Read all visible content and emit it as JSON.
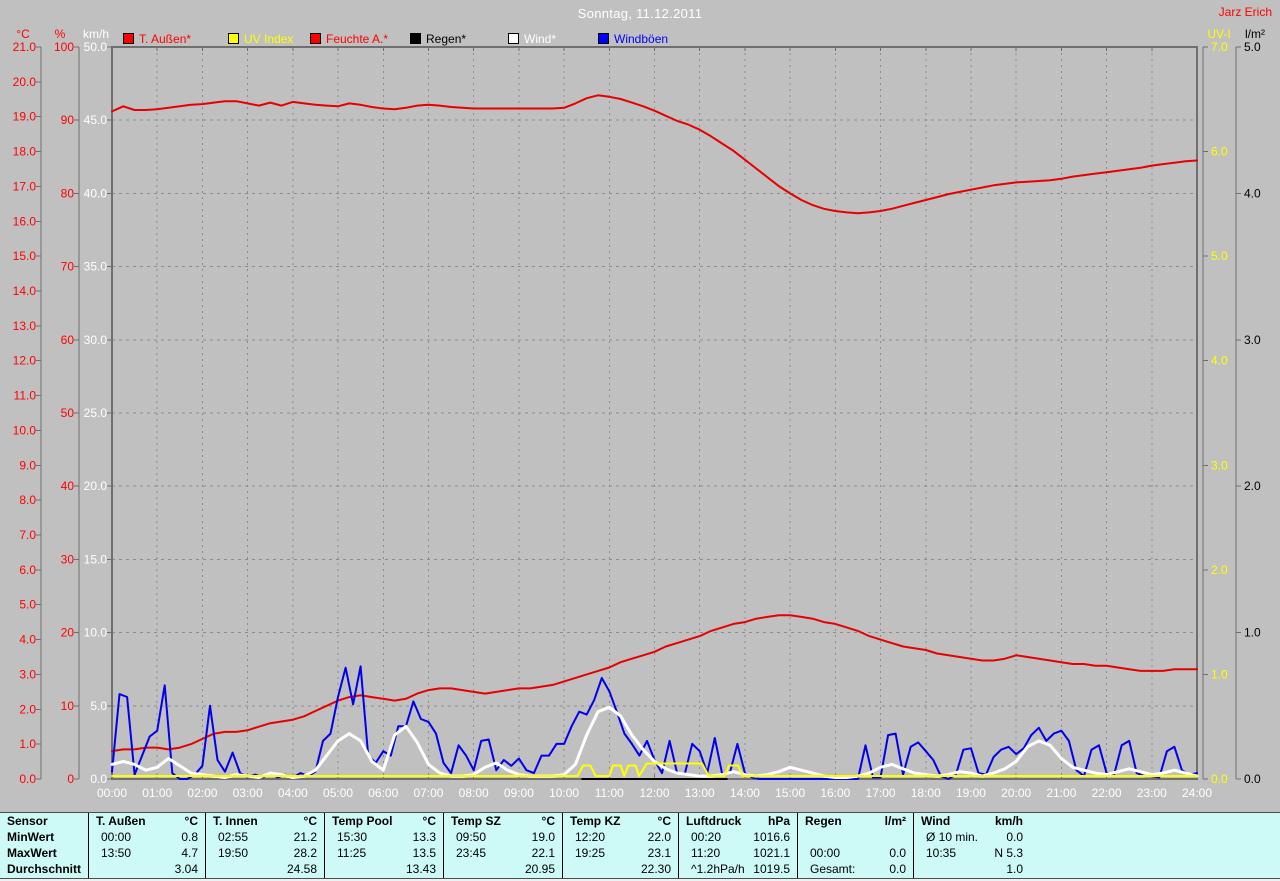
{
  "header": {
    "title": "Sonntag, 11.12.2011",
    "watermark": "Jarz Erich"
  },
  "colors": {
    "background": "#c0c0c0",
    "grid": "#8c8c8c",
    "frame": "#6f6f6f",
    "red": "#e60000",
    "axis_red": "#ff0000",
    "white": "#ffffff",
    "blue": "#0000ee",
    "yellow": "#ffff00",
    "black": "#000000",
    "table_bg": "#cdf9f6"
  },
  "legend": [
    {
      "label": "T. Außen*",
      "color": "#ff0000"
    },
    {
      "label": "UV Index",
      "color": "#ffff00"
    },
    {
      "label": "Feuchte A.*",
      "color": "#ff0000"
    },
    {
      "label": "Regen*",
      "color": "#000000"
    },
    {
      "label": "Wind*",
      "color": "#ffffff"
    },
    {
      "label": "Windböen",
      "color": "#0000ff"
    }
  ],
  "axes": {
    "left": [
      {
        "name": "°C",
        "color": "#ff0000",
        "min": 0,
        "max": 21,
        "step": 1,
        "decimals": 1
      },
      {
        "name": "%",
        "color": "#ff0000",
        "min": 0,
        "max": 100,
        "step": 10,
        "decimals": 0
      },
      {
        "name": "km/h",
        "color": "#ffffff",
        "min": 0,
        "max": 50,
        "step": 5,
        "decimals": 1
      }
    ],
    "right": [
      {
        "name": "UV-I",
        "color": "#ffff00",
        "min": 0,
        "max": 7,
        "step": 1,
        "decimals": 1
      },
      {
        "name": "l/m²",
        "color": "#000000",
        "min": 0,
        "max": 5,
        "step": 1,
        "decimals": 1
      }
    ],
    "x": {
      "labels": [
        "00:00",
        "01:00",
        "02:00",
        "03:00",
        "04:00",
        "05:00",
        "06:00",
        "07:00",
        "08:00",
        "09:00",
        "10:00",
        "11:00",
        "12:00",
        "13:00",
        "14:00",
        "15:00",
        "16:00",
        "17:00",
        "18:00",
        "19:00",
        "20:00",
        "21:00",
        "22:00",
        "23:00",
        "24:00"
      ]
    }
  },
  "chart_data": {
    "type": "line",
    "title": "Sonntag, 11.12.2011",
    "x_hours_range": [
      0,
      24
    ],
    "grid": "dashed",
    "series": [
      {
        "name": "Feuchte A.",
        "axis": "%",
        "color": "#e60000",
        "width": 2,
        "x_start": 0,
        "x_step": 0.25,
        "values": [
          91.2,
          91.9,
          91.4,
          91.4,
          91.5,
          91.7,
          91.9,
          92.1,
          92.2,
          92.4,
          92.6,
          92.6,
          92.3,
          92.0,
          92.4,
          92.0,
          92.5,
          92.3,
          92.1,
          92.0,
          91.9,
          92.3,
          92.1,
          91.8,
          91.6,
          91.5,
          91.7,
          92.0,
          92.1,
          92.0,
          91.8,
          91.7,
          91.6,
          91.6,
          91.6,
          91.6,
          91.6,
          91.6,
          91.6,
          91.6,
          91.7,
          92.3,
          93.0,
          93.4,
          93.2,
          92.9,
          92.4,
          91.9,
          91.3,
          90.6,
          89.9,
          89.4,
          88.7,
          87.8,
          86.8,
          85.8,
          84.6,
          83.4,
          82.2,
          81.0,
          80.0,
          79.1,
          78.4,
          77.9,
          77.6,
          77.4,
          77.3,
          77.4,
          77.6,
          77.9,
          78.3,
          78.7,
          79.1,
          79.5,
          79.9,
          80.2,
          80.5,
          80.8,
          81.1,
          81.3,
          81.5,
          81.6,
          81.7,
          81.8,
          82.0,
          82.3,
          82.5,
          82.7,
          82.9,
          83.1,
          83.3,
          83.5,
          83.8,
          84.0,
          84.2,
          84.4,
          84.5
        ]
      },
      {
        "name": "T. Außen",
        "axis": "°C",
        "color": "#e60000",
        "width": 2,
        "x_start": 0,
        "x_step": 0.25,
        "values": [
          0.8,
          0.85,
          0.85,
          0.9,
          0.9,
          0.85,
          0.9,
          1.0,
          1.15,
          1.3,
          1.35,
          1.35,
          1.4,
          1.5,
          1.6,
          1.65,
          1.7,
          1.8,
          1.95,
          2.1,
          2.25,
          2.35,
          2.4,
          2.35,
          2.3,
          2.25,
          2.3,
          2.45,
          2.55,
          2.6,
          2.6,
          2.55,
          2.5,
          2.45,
          2.5,
          2.55,
          2.6,
          2.6,
          2.65,
          2.7,
          2.8,
          2.9,
          3.0,
          3.1,
          3.2,
          3.35,
          3.45,
          3.55,
          3.65,
          3.8,
          3.9,
          4.0,
          4.1,
          4.25,
          4.35,
          4.45,
          4.5,
          4.6,
          4.65,
          4.7,
          4.7,
          4.65,
          4.6,
          4.5,
          4.45,
          4.35,
          4.25,
          4.1,
          4.0,
          3.9,
          3.8,
          3.75,
          3.7,
          3.6,
          3.55,
          3.5,
          3.45,
          3.4,
          3.4,
          3.45,
          3.55,
          3.5,
          3.45,
          3.4,
          3.35,
          3.3,
          3.3,
          3.25,
          3.25,
          3.2,
          3.15,
          3.1,
          3.1,
          3.1,
          3.15,
          3.15,
          3.15
        ]
      },
      {
        "name": "Windböen",
        "axis": "km/h",
        "color": "#0000ee",
        "width": 2,
        "x_start": 0,
        "x_step": 0.1666667,
        "values": [
          0.5,
          5.8,
          5.6,
          0.3,
          1.6,
          2.9,
          3.3,
          6.4,
          0.4,
          0,
          0,
          0.3,
          0.9,
          5,
          1.3,
          0.5,
          1.8,
          0.4,
          0.1,
          0.3,
          0.1,
          0.4,
          0.1,
          0.3,
          0.1,
          0.4,
          0.2,
          0.5,
          2.6,
          3.1,
          5.6,
          7.6,
          5.1,
          7.7,
          1.6,
          1.1,
          1.9,
          1.6,
          3.6,
          3.6,
          5.3,
          4.1,
          3.9,
          3.1,
          1.1,
          0.4,
          2.3,
          1.6,
          0.6,
          2.6,
          2.7,
          0.6,
          1.3,
          0.9,
          1.4,
          0.6,
          0.4,
          1.6,
          1.6,
          2.4,
          2.4,
          3.6,
          4.6,
          4.4,
          5.4,
          6.9,
          6,
          4.6,
          3.1,
          2.4,
          1.6,
          2.6,
          1.3,
          0.4,
          2.6,
          0.4,
          0.3,
          2.4,
          1.9,
          0.4,
          2.8,
          0.3,
          0.4,
          2.4,
          0.4,
          0.1,
          0,
          0,
          0,
          0,
          0,
          0,
          0,
          0,
          0,
          0,
          0,
          0,
          0,
          0,
          2.3,
          0.1,
          0.1,
          3,
          3.1,
          0.3,
          2.2,
          2.5,
          1.9,
          1.3,
          0.2,
          0,
          0.3,
          2,
          2.1,
          0.4,
          0.3,
          1.5,
          2,
          2.2,
          1.7,
          2.1,
          3,
          3.5,
          2.6,
          3.1,
          3.3,
          2.6,
          0.6,
          0.2,
          2,
          2.3,
          0.4,
          0.3,
          2.3,
          2.6,
          0.4,
          0.2,
          0.2,
          0.1,
          1.9,
          2.2,
          0.6,
          0.3,
          0.4
        ]
      },
      {
        "name": "Wind",
        "axis": "km/h",
        "color": "#ffffff",
        "width": 3,
        "x_start": 0,
        "x_step": 0.25,
        "values": [
          1.0,
          1.2,
          1.0,
          0.6,
          0.8,
          1.4,
          0.9,
          0.4,
          0.3,
          0.2,
          0.1,
          0.3,
          0.2,
          0.1,
          0.4,
          0.3,
          0.1,
          0.2,
          0.6,
          1.6,
          2.6,
          3.1,
          2.6,
          1.2,
          0.6,
          3.0,
          3.6,
          2.5,
          1.0,
          0.4,
          0.2,
          0.2,
          0.3,
          0.8,
          1.1,
          0.6,
          0.3,
          0.2,
          0.2,
          0.2,
          0.3,
          1.0,
          3.0,
          4.6,
          4.9,
          4.3,
          3.0,
          2.0,
          1.2,
          0.7,
          0.4,
          0.3,
          0.2,
          0.2,
          0.3,
          0.5,
          0.3,
          0.2,
          0.3,
          0.5,
          0.8,
          0.6,
          0.4,
          0.2,
          0.1,
          0.1,
          0.2,
          0.4,
          0.8,
          1.0,
          0.7,
          0.4,
          0.3,
          0.2,
          0.3,
          0.5,
          0.4,
          0.2,
          0.4,
          0.7,
          1.2,
          2.2,
          2.6,
          2.3,
          1.4,
          0.8,
          0.6,
          0.4,
          0.3,
          0.5,
          0.7,
          0.5,
          0.3,
          0.4,
          0.6,
          0.4,
          0.2
        ]
      },
      {
        "name": "Regen",
        "axis": "l/m²",
        "color": "#000000",
        "width": 2,
        "x": [
          10.4,
          13.6
        ],
        "values": [
          0,
          0
        ]
      },
      {
        "name": "UV Index",
        "axis": "UV-I",
        "color": "#ffff00",
        "width": 2,
        "y_offset": -3,
        "x": [
          0,
          10.3,
          10.42,
          10.58,
          10.7,
          11.0,
          11.08,
          11.25,
          11.33,
          11.42,
          11.58,
          11.66,
          11.83,
          13.05,
          13.2,
          13.55,
          13.65,
          13.85,
          13.95,
          24
        ],
        "values": [
          0,
          0,
          0.1,
          0.1,
          0,
          0,
          0.1,
          0.1,
          0,
          0.1,
          0.1,
          0,
          0.12,
          0.12,
          0,
          0,
          0.1,
          0.1,
          0,
          0
        ]
      }
    ]
  },
  "table": {
    "row_headers": [
      "Sensor",
      "MinWert",
      "MaxWert",
      "Durchschnitt"
    ],
    "columns": [
      {
        "name": "T. Außen",
        "unit": "°C",
        "min_time": "00:00",
        "min_val": "0.8",
        "max_time": "13:50",
        "max_val": "4.7",
        "avg_label": "",
        "avg_val": "3.04"
      },
      {
        "name": "T. Innen",
        "unit": "°C",
        "min_time": "02:55",
        "min_val": "21.2",
        "max_time": "19:50",
        "max_val": "28.2",
        "avg_label": "",
        "avg_val": "24.58"
      },
      {
        "name": "Temp Pool",
        "unit": "°C",
        "min_time": "15:30",
        "min_val": "13.3",
        "max_time": "11:25",
        "max_val": "13.5",
        "avg_label": "",
        "avg_val": "13.43"
      },
      {
        "name": "Temp SZ",
        "unit": "°C",
        "min_time": "09:50",
        "min_val": "19.0",
        "max_time": "23:45",
        "max_val": "22.1",
        "avg_label": "",
        "avg_val": "20.95"
      },
      {
        "name": "Temp KZ",
        "unit": "°C",
        "min_time": "12:20",
        "min_val": "22.0",
        "max_time": "19:25",
        "max_val": "23.1",
        "avg_label": "",
        "avg_val": "22.30"
      },
      {
        "name": "Luftdruck",
        "unit": "hPa",
        "min_time": "00:20",
        "min_val": "1016.6",
        "max_time": "11:20",
        "max_val": "1021.1",
        "avg_label": "^1.2hPa/h",
        "avg_val": "1019.5"
      },
      {
        "name": "Regen",
        "unit": "l/m²",
        "min_time": "",
        "min_val": "",
        "max_time": "00:00",
        "max_val": "0.0",
        "avg_label": "Gesamt:",
        "avg_val": "0.0"
      },
      {
        "name": "Wind",
        "unit": "km/h",
        "min_time": "Ø 10 min.",
        "min_val": "0.0",
        "max_time": "10:35",
        "max_val": "N 5.3",
        "avg_label": "",
        "avg_val": "1.0"
      }
    ]
  }
}
